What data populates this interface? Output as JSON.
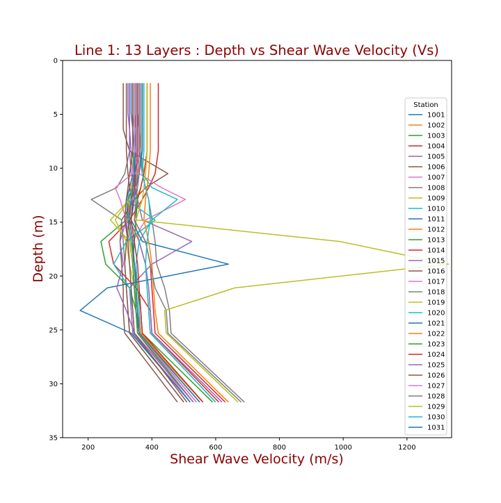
{
  "chart_data": {
    "type": "line",
    "title": "Line 1: 13 Layers : Depth vs Shear Wave Velocity (Vs)",
    "xlabel": "Shear Wave Velocity (m/s)",
    "ylabel": "Depth (m)",
    "xlim": [
      120,
      1340
    ],
    "ylim": [
      35,
      0
    ],
    "y_inverted": true,
    "xticks": [
      200,
      400,
      600,
      800,
      1000,
      1200
    ],
    "yticks": [
      0,
      5,
      10,
      15,
      20,
      25,
      30,
      35
    ],
    "grid": false,
    "legend": {
      "title": "Station",
      "placement": "right"
    },
    "colors": [
      "#1f77b4",
      "#ff7f0e",
      "#2ca02c",
      "#d62728",
      "#9467bd",
      "#8c564b",
      "#e377c2",
      "#7f7f7f",
      "#bcbd22",
      "#17becf"
    ],
    "title_color": "#8b0000",
    "depths": [
      2.1,
      4.9,
      6.4,
      8.4,
      10.5,
      11.8,
      12.9,
      14.8,
      16.8,
      18.9,
      21.1,
      23.2,
      25.3,
      31.7
    ],
    "series": [
      {
        "name": "1001",
        "values": [
          335,
          335,
          340,
          345,
          350,
          340,
          325,
          320,
          330,
          340,
          345,
          350,
          355,
          540
        ]
      },
      {
        "name": "1002",
        "values": [
          355,
          355,
          360,
          365,
          375,
          365,
          350,
          345,
          360,
          380,
          385,
          390,
          395,
          600
        ]
      },
      {
        "name": "1003",
        "values": [
          345,
          345,
          350,
          350,
          345,
          335,
          330,
          320,
          240,
          255,
          330,
          350,
          360,
          560
        ]
      },
      {
        "name": "1004",
        "values": [
          420,
          420,
          420,
          420,
          410,
          390,
          370,
          330,
          265,
          280,
          350,
          395,
          400,
          610
        ]
      },
      {
        "name": "1005",
        "values": [
          325,
          325,
          330,
          335,
          340,
          345,
          335,
          330,
          360,
          380,
          390,
          395,
          400,
          620
        ]
      },
      {
        "name": "1006",
        "values": [
          310,
          310,
          310,
          330,
          450,
          380,
          345,
          305,
          300,
          305,
          310,
          310,
          315,
          480
        ]
      },
      {
        "name": "1007",
        "values": [
          340,
          340,
          345,
          350,
          360,
          430,
          505,
          380,
          340,
          340,
          345,
          350,
          355,
          520
        ]
      },
      {
        "name": "1008",
        "values": [
          330,
          330,
          330,
          330,
          315,
          290,
          210,
          305,
          310,
          315,
          320,
          325,
          330,
          500
        ]
      },
      {
        "name": "1009",
        "values": [
          370,
          370,
          370,
          370,
          360,
          340,
          330,
          285,
          320,
          330,
          345,
          355,
          360,
          560
        ]
      },
      {
        "name": "1010",
        "values": [
          365,
          365,
          365,
          365,
          370,
          400,
          480,
          400,
          360,
          350,
          355,
          360,
          365,
          560
        ]
      },
      {
        "name": "1011",
        "values": [
          350,
          350,
          350,
          350,
          340,
          330,
          320,
          315,
          330,
          340,
          345,
          350,
          360,
          550
        ]
      },
      {
        "name": "1012",
        "values": [
          345,
          345,
          350,
          350,
          345,
          335,
          330,
          325,
          335,
          345,
          350,
          355,
          365,
          560
        ]
      },
      {
        "name": "1013",
        "values": [
          360,
          360,
          360,
          360,
          355,
          345,
          335,
          325,
          335,
          345,
          355,
          365,
          370,
          590
        ]
      },
      {
        "name": "1014",
        "values": [
          385,
          385,
          385,
          385,
          375,
          365,
          355,
          345,
          380,
          395,
          400,
          405,
          410,
          630
        ]
      },
      {
        "name": "1015",
        "values": [
          330,
          330,
          330,
          330,
          335,
          345,
          355,
          370,
          525,
          400,
          330,
          335,
          340,
          520
        ]
      },
      {
        "name": "1016",
        "values": [
          320,
          320,
          320,
          320,
          325,
          330,
          335,
          330,
          320,
          315,
          320,
          325,
          330,
          500
        ]
      },
      {
        "name": "1017",
        "values": [
          345,
          345,
          345,
          345,
          340,
          285,
          300,
          320,
          330,
          340,
          345,
          350,
          355,
          540
        ]
      },
      {
        "name": "1018",
        "values": [
          355,
          355,
          360,
          360,
          370,
          380,
          390,
          400,
          410,
          415,
          440,
          455,
          460,
          690
        ]
      },
      {
        "name": "1019",
        "values": [
          360,
          360,
          360,
          360,
          355,
          345,
          330,
          270,
          330,
          340,
          345,
          355,
          360,
          550
        ]
      },
      {
        "name": "1020",
        "values": [
          350,
          350,
          350,
          350,
          345,
          340,
          320,
          410,
          320,
          280,
          330,
          340,
          345,
          530
        ]
      },
      {
        "name": "1021",
        "values": [
          370,
          370,
          370,
          370,
          360,
          350,
          345,
          335,
          370,
          640,
          260,
          175,
          335,
          520
        ]
      },
      {
        "name": "1022",
        "values": [
          395,
          395,
          395,
          395,
          390,
          385,
          380,
          375,
          390,
          400,
          405,
          410,
          420,
          640
        ]
      },
      {
        "name": "1023",
        "values": [
          340,
          340,
          340,
          340,
          345,
          350,
          355,
          350,
          345,
          340,
          345,
          350,
          355,
          530
        ]
      },
      {
        "name": "1024",
        "values": [
          355,
          355,
          355,
          355,
          350,
          345,
          340,
          335,
          345,
          355,
          360,
          365,
          370,
          560
        ]
      },
      {
        "name": "1025",
        "values": [
          360,
          360,
          360,
          360,
          355,
          350,
          340,
          320,
          300,
          310,
          290,
          320,
          345,
          530
        ]
      },
      {
        "name": "1026",
        "values": [
          340,
          340,
          340,
          340,
          330,
          325,
          320,
          315,
          325,
          330,
          335,
          340,
          345,
          510
        ]
      },
      {
        "name": "1027",
        "values": [
          350,
          350,
          350,
          350,
          345,
          340,
          335,
          330,
          340,
          345,
          350,
          355,
          360,
          540
        ]
      },
      {
        "name": "1028",
        "values": [
          365,
          365,
          365,
          365,
          360,
          355,
          350,
          345,
          380,
          395,
          410,
          445,
          450,
          680
        ]
      },
      {
        "name": "1029",
        "values": [
          385,
          385,
          385,
          385,
          380,
          375,
          370,
          350,
          990,
          1330,
          660,
          440,
          445,
          670
        ]
      },
      {
        "name": "1030",
        "values": [
          375,
          375,
          375,
          375,
          370,
          380,
          390,
          395,
          385,
          380,
          385,
          390,
          395,
          600
        ]
      },
      {
        "name": "1031",
        "values": [
          350,
          350,
          350,
          350,
          345,
          340,
          335,
          330,
          340,
          345,
          350,
          355,
          360,
          550
        ]
      }
    ]
  }
}
